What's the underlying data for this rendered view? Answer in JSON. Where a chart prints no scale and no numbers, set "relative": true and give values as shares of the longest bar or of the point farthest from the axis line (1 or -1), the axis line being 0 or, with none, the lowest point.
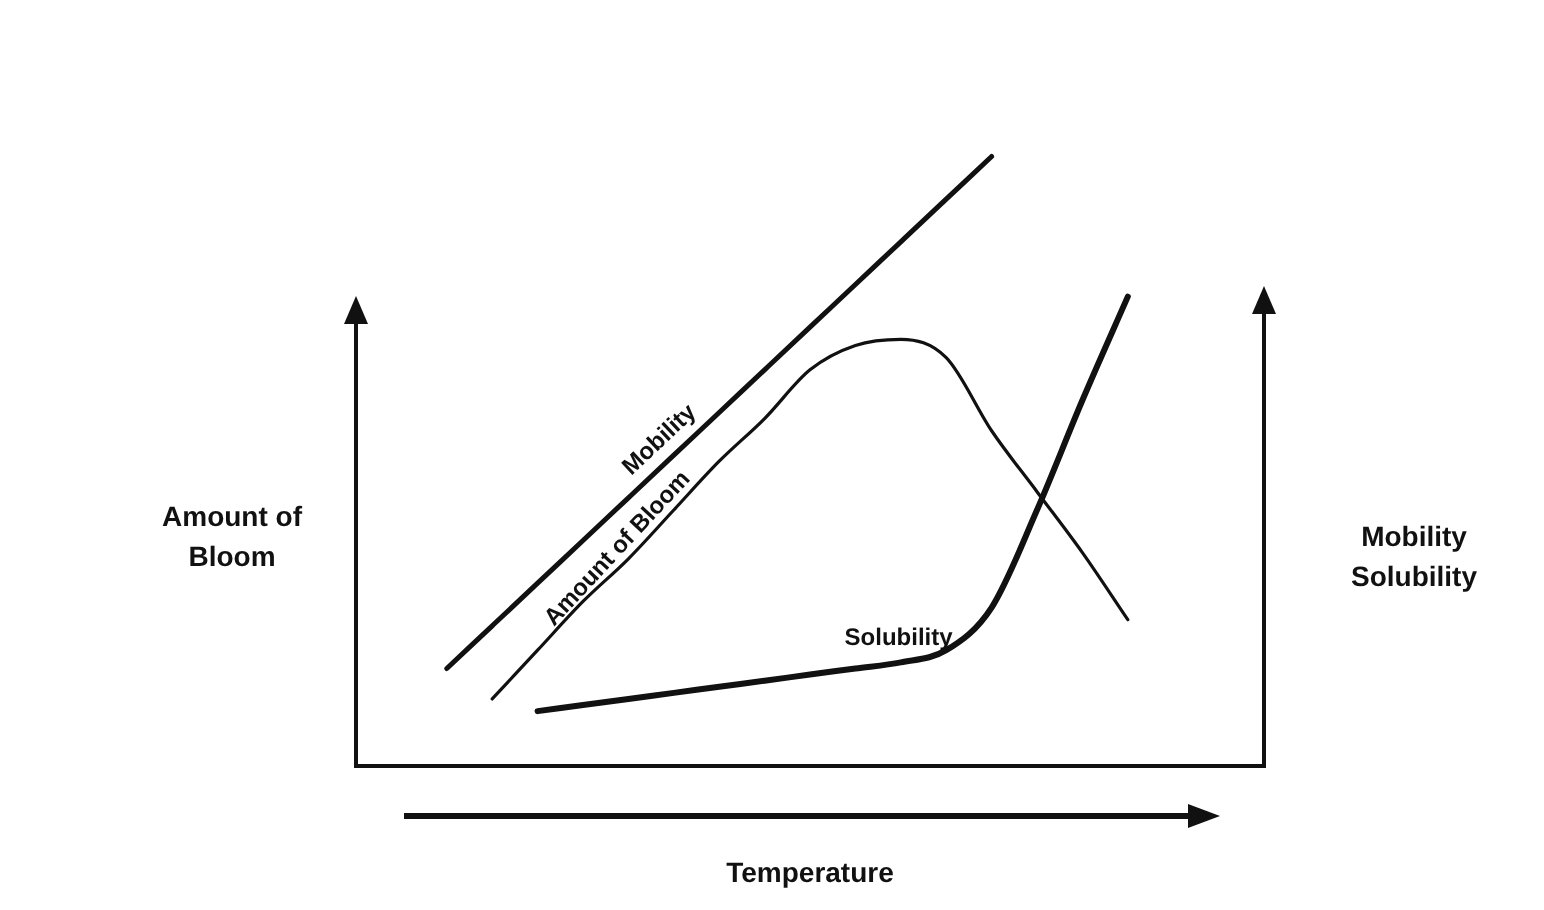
{
  "chart_data": {
    "type": "line",
    "relative": true,
    "xlabel": "Temperature",
    "ylabel": "Amount of Bloom",
    "y2label": "Mobility Solubility",
    "categories": [
      null,
      null,
      null,
      null,
      null,
      null,
      null,
      null,
      null,
      null,
      null,
      null,
      null,
      null,
      null,
      null,
      null,
      null,
      null,
      null,
      null
    ],
    "series": [
      {
        "name": "Mobility",
        "color": "#111111",
        "values": [
          null,
          null,
          0.16,
          0.23,
          0.3,
          0.37,
          0.44,
          0.51,
          0.58,
          0.65,
          0.72,
          0.79,
          0.86,
          0.93,
          1.0,
          null,
          null,
          null,
          null,
          null,
          null
        ]
      },
      {
        "name": "Amount of Bloom",
        "color": "#111111",
        "values": [
          null,
          null,
          null,
          0.11,
          0.19,
          0.27,
          0.34,
          0.42,
          0.5,
          0.57,
          0.65,
          0.69,
          0.7,
          0.67,
          0.55,
          0.45,
          0.35,
          0.24,
          null,
          null,
          null
        ]
      },
      {
        "name": "Solubility",
        "color": "#111111",
        "values": [
          null,
          null,
          null,
          null,
          0.09,
          0.1,
          0.11,
          0.12,
          0.13,
          0.14,
          0.15,
          0.16,
          0.17,
          0.19,
          0.26,
          0.42,
          0.6,
          0.77,
          null,
          null,
          null
        ]
      }
    ],
    "legend": false,
    "marker": "none",
    "line_style": "solid"
  }
}
